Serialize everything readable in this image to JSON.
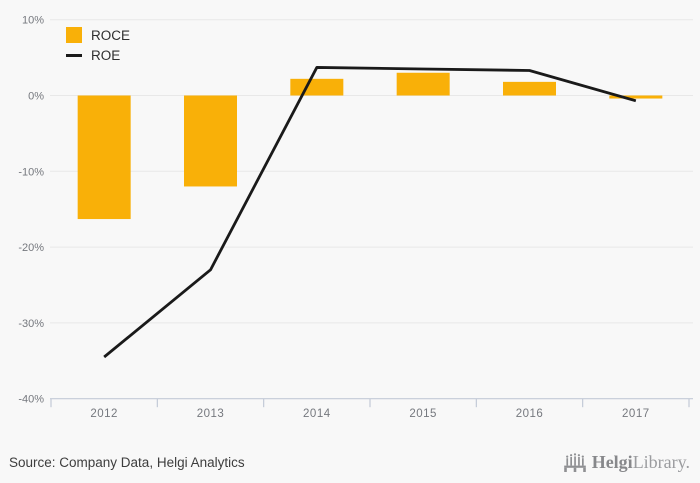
{
  "chart_data": {
    "type": "bar",
    "categories": [
      "2012",
      "2013",
      "2014",
      "2015",
      "2016",
      "2017"
    ],
    "series": [
      {
        "name": "ROCE",
        "type": "bar",
        "color": "#F9B008",
        "values": [
          -16.3,
          -12.0,
          2.2,
          3.0,
          1.8,
          -0.4
        ]
      },
      {
        "name": "ROE",
        "type": "line",
        "color": "#1a1a1a",
        "values": [
          -34.5,
          -23.0,
          3.7,
          3.5,
          3.3,
          -0.7
        ]
      }
    ],
    "title": "",
    "xlabel": "",
    "ylabel": "",
    "ylim": [
      -40,
      10
    ],
    "y_ticks": [
      "10%",
      "0%",
      "-10%",
      "-20%",
      "-30%",
      "-40%"
    ],
    "y_tick_values": [
      10,
      0,
      -10,
      -20,
      -30,
      -40
    ],
    "grid": true,
    "legend_position": "top-left"
  },
  "colors": {
    "background": "#f8f8f8",
    "gridline": "#e8e8e8",
    "axis": "#c3cad7",
    "tick_text": "#75787e",
    "bar": "#F9B008",
    "line": "#1a1a1a",
    "legend_text": "#2e2e2e",
    "source_text": "#3d3d3d",
    "logo": "#8f9093"
  },
  "footer": {
    "source_text": "Source: Company Data, Helgi Analytics",
    "logo_bold": "Helgi",
    "logo_light": "Library."
  }
}
